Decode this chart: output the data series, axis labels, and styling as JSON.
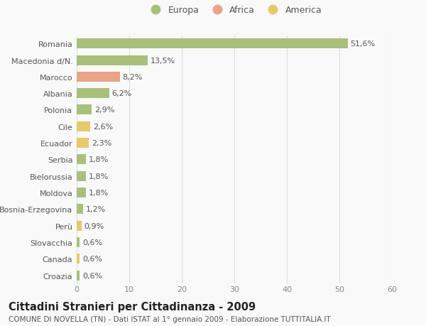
{
  "categories": [
    "Romania",
    "Macedonia d/N.",
    "Marocco",
    "Albania",
    "Polonia",
    "Cile",
    "Ecuador",
    "Serbia",
    "Bielorussia",
    "Moldova",
    "Bosnia-Erzegovina",
    "Perù",
    "Slovacchia",
    "Canada",
    "Croazia"
  ],
  "values": [
    51.6,
    13.5,
    8.2,
    6.2,
    2.9,
    2.6,
    2.3,
    1.8,
    1.8,
    1.8,
    1.2,
    0.9,
    0.6,
    0.6,
    0.6
  ],
  "labels": [
    "51,6%",
    "13,5%",
    "8,2%",
    "6,2%",
    "2,9%",
    "2,6%",
    "2,3%",
    "1,8%",
    "1,8%",
    "1,8%",
    "1,2%",
    "0,9%",
    "0,6%",
    "0,6%",
    "0,6%"
  ],
  "colors": [
    "#a8c07a",
    "#a8c07a",
    "#e8a484",
    "#a8c07a",
    "#a8c07a",
    "#e8c868",
    "#e8c868",
    "#a8c07a",
    "#a8c07a",
    "#a8c07a",
    "#a8c07a",
    "#e8c868",
    "#a8c07a",
    "#e8c868",
    "#a8c07a"
  ],
  "legend": [
    {
      "label": "Europa",
      "color": "#a8c07a"
    },
    {
      "label": "Africa",
      "color": "#e8a484"
    },
    {
      "label": "America",
      "color": "#e8c868"
    }
  ],
  "xlim": [
    0,
    60
  ],
  "xticks": [
    0,
    10,
    20,
    30,
    40,
    50,
    60
  ],
  "title": "Cittadini Stranieri per Cittadinanza - 2009",
  "subtitle": "COMUNE DI NOVELLA (TN) - Dati ISTAT al 1° gennaio 2009 - Elaborazione TUTTITALIA.IT",
  "bg_color": "#f9f9f9",
  "grid_color": "#dddddd",
  "bar_height": 0.6,
  "label_fontsize": 8,
  "tick_fontsize": 8,
  "title_fontsize": 10.5,
  "subtitle_fontsize": 7.5
}
